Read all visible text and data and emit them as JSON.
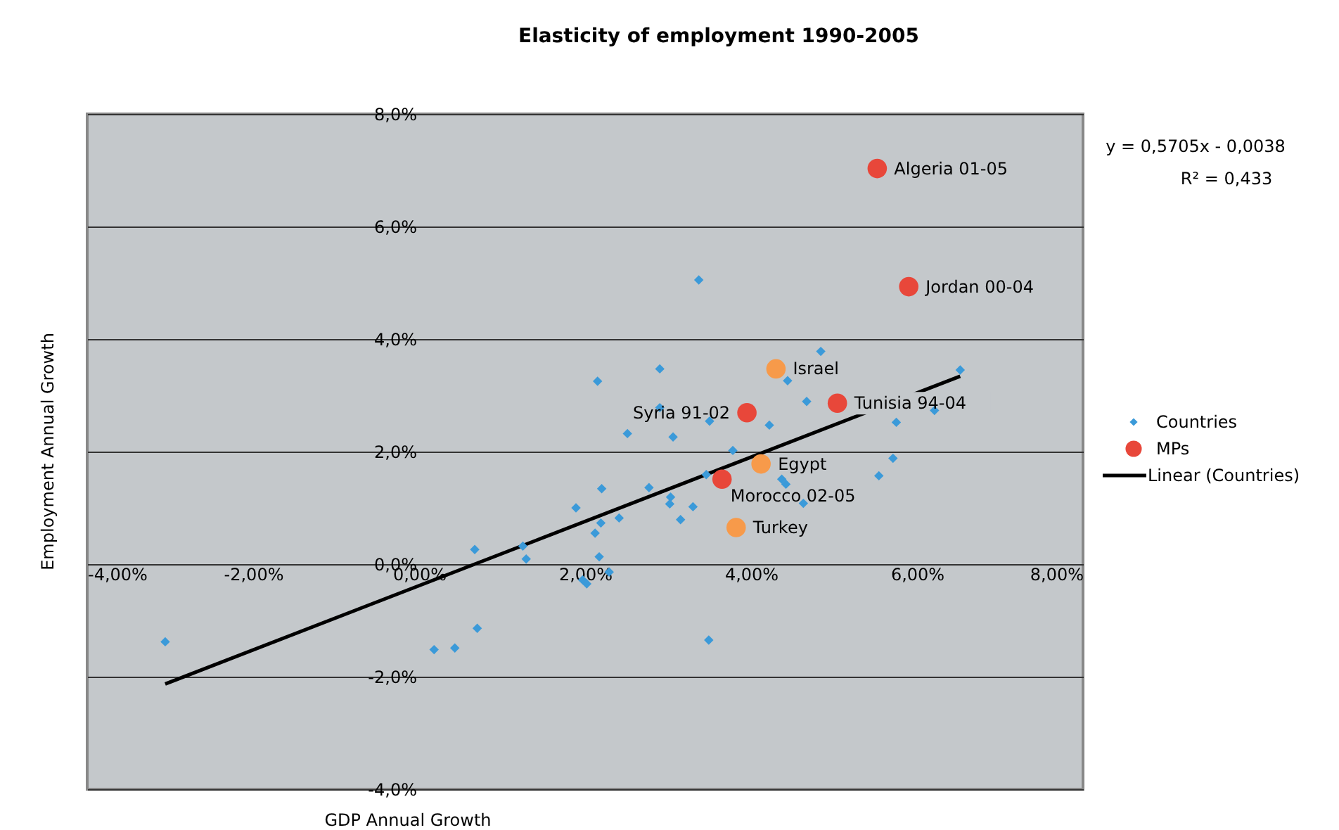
{
  "chart_data": {
    "type": "scatter",
    "title": "Elasticity of employment 1990-2005",
    "xlabel": "GDP Annual Growth",
    "ylabel": "Employment Annual Growth",
    "xlim": [
      -4,
      8
    ],
    "ylim": [
      -4,
      8
    ],
    "xticks": [
      {
        "value": -4,
        "label": "-4,00%"
      },
      {
        "value": -2,
        "label": "-2,00%"
      },
      {
        "value": 0,
        "label": "0,00%"
      },
      {
        "value": 2,
        "label": "2,00%"
      },
      {
        "value": 4,
        "label": "4,00%"
      },
      {
        "value": 6,
        "label": "6,00%"
      },
      {
        "value": 8,
        "label": "8,00%"
      }
    ],
    "yticks": [
      {
        "value": -4,
        "label": "-4,0%"
      },
      {
        "value": -2,
        "label": "-2,0%"
      },
      {
        "value": 0,
        "label": "0,0%"
      },
      {
        "value": 2,
        "label": "2,0%"
      },
      {
        "value": 4,
        "label": "4,0%"
      },
      {
        "value": 6,
        "label": "6,0%"
      },
      {
        "value": 8,
        "label": "8,0%"
      }
    ],
    "grid": "y",
    "legend": "right",
    "series": [
      {
        "name": "Countries",
        "type": "scatter",
        "marker": "diamond",
        "color": "#3b9ad9",
        "x": [
          3.37,
          4.84,
          2.9,
          2.15,
          4.44,
          6.52,
          4.67,
          2.9,
          3.5,
          4.22,
          6.21,
          5.75,
          2.51,
          3.06,
          3.78,
          5.71,
          5.54,
          3.46,
          4.37,
          4.42,
          4.63,
          2.2,
          2.77,
          1.89,
          3.03,
          3.02,
          3.3,
          2.41,
          3.15,
          2.19,
          2.12,
          2.17,
          2.29,
          1.97,
          2.02,
          -3.06,
          0.67,
          1.25,
          1.29,
          0.18,
          0.43,
          0.7,
          3.49
        ],
        "values": [
          5.05,
          3.78,
          3.47,
          3.25,
          3.26,
          3.45,
          2.89,
          2.78,
          2.54,
          2.47,
          2.73,
          2.52,
          2.32,
          2.26,
          2.02,
          1.88,
          1.57,
          1.59,
          1.51,
          1.42,
          1.08,
          1.34,
          1.36,
          1.0,
          1.19,
          1.07,
          1.02,
          0.82,
          0.79,
          0.73,
          0.55,
          0.13,
          -0.14,
          -0.28,
          -0.35,
          -1.38,
          0.26,
          0.32,
          0.09,
          -1.52,
          -1.49,
          -1.14,
          -1.35
        ]
      },
      {
        "name": "MPs",
        "type": "scatter",
        "marker": "circle",
        "color": "#e8473a",
        "colors": [
          "#e8473a",
          "#e8473a",
          "#f79a4a",
          "#e8473a",
          "#e8473a",
          "#f79a4a",
          "#e8473a",
          "#f79a4a"
        ],
        "x": [
          5.52,
          5.9,
          4.3,
          5.04,
          3.95,
          4.12,
          3.65,
          3.82
        ],
        "values": [
          7.03,
          4.93,
          3.47,
          2.86,
          2.69,
          1.78,
          1.51,
          0.65
        ]
      },
      {
        "name": "Linear (Countries)",
        "type": "line",
        "marker": "none",
        "color": "#000000",
        "x": [
          -3.06,
          6.52
        ],
        "values": [
          -2.13,
          3.34
        ]
      }
    ],
    "annotations": [
      "y = 0,5705x - 0,0038",
      "R² = 0,433",
      {
        "text": "Algeria 01-05",
        "x": 5.52,
        "y": 7.03
      },
      {
        "text": "Jordan 00-04",
        "x": 5.9,
        "y": 4.93
      },
      {
        "text": "Israel",
        "x": 4.3,
        "y": 3.47
      },
      {
        "text": "Tunisia 94-04",
        "x": 5.04,
        "y": 2.86
      },
      {
        "text": "Syria 91-02",
        "x": 3.95,
        "y": 2.69
      },
      {
        "text": "Egypt",
        "x": 4.12,
        "y": 1.78
      },
      {
        "text": "Morocco 02-05",
        "x": 3.65,
        "y": 1.51
      },
      {
        "text": "Turkey",
        "x": 3.82,
        "y": 0.65
      }
    ]
  }
}
